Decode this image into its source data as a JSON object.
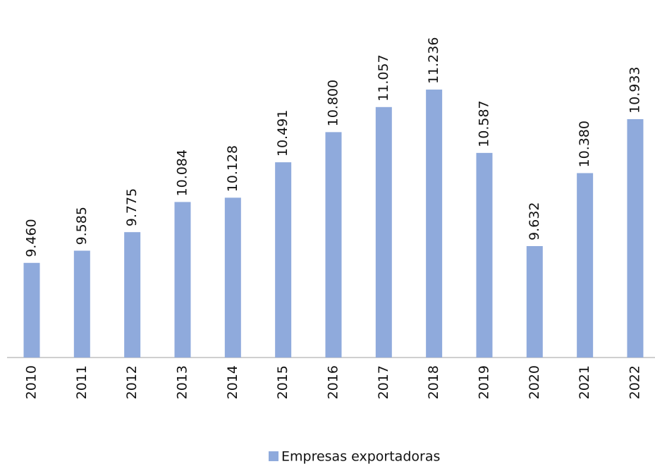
{
  "chart_data": {
    "type": "bar",
    "categories": [
      "2010",
      "2011",
      "2012",
      "2013",
      "2014",
      "2015",
      "2016",
      "2017",
      "2018",
      "2019",
      "2020",
      "2021",
      "2022"
    ],
    "series": [
      {
        "name": "Empresas exportadoras",
        "color": "#8faadc",
        "values": [
          9460,
          9585,
          9775,
          10084,
          10128,
          10491,
          10800,
          11057,
          11236,
          10587,
          9632,
          10380,
          10933
        ],
        "value_labels": [
          "9.460",
          "9.585",
          "9.775",
          "10.084",
          "10.128",
          "10.491",
          "10.800",
          "11.057",
          "11.236",
          "10.587",
          "9.632",
          "10.380",
          "10.933"
        ]
      }
    ],
    "ylim": [
      8490,
      11800
    ],
    "legend": "bottom"
  }
}
